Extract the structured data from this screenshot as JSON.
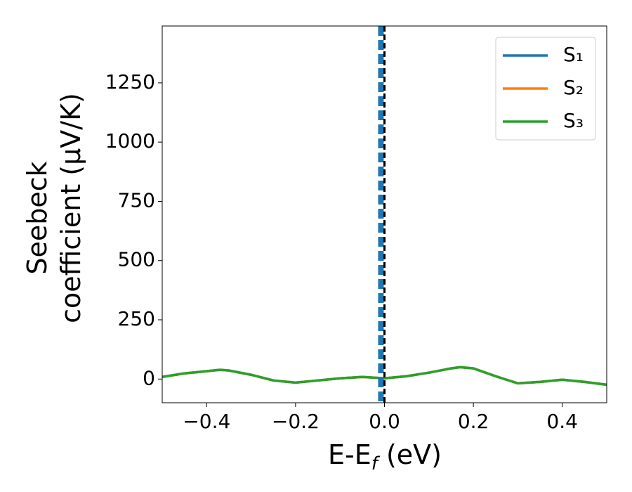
{
  "chart_data": {
    "type": "line",
    "x_label": {
      "main": "E-E",
      "sub": "f",
      "end": " (eV)"
    },
    "y_label": [
      "Seebeck",
      "coefficient  (μV/K)"
    ],
    "x": [
      -0.5,
      -0.45,
      -0.4,
      -0.37,
      -0.35,
      -0.3,
      -0.25,
      -0.2,
      -0.15,
      -0.1,
      -0.05,
      0,
      0.05,
      0.1,
      0.15,
      0.17,
      0.2,
      0.25,
      0.3,
      0.35,
      0.4,
      0.45,
      0.5
    ],
    "series": [
      {
        "name": "S₁",
        "color": "#1f77b4",
        "values": [
          9,
          24,
          33,
          39,
          36,
          18,
          -6,
          -15,
          -6,
          3,
          9,
          3,
          12,
          27,
          45,
          50,
          45,
          12,
          -18,
          -12,
          -3,
          -12,
          -24
        ]
      },
      {
        "name": "S₂",
        "color": "#ff7f0e",
        "values": [
          9,
          24,
          33,
          39,
          36,
          18,
          -6,
          -15,
          -6,
          3,
          9,
          3,
          12,
          27,
          45,
          50,
          45,
          12,
          -18,
          -12,
          -3,
          -12,
          -24
        ]
      },
      {
        "name": "S₃",
        "color": "#2ca02c",
        "values": [
          9,
          24,
          33,
          39,
          36,
          18,
          -6,
          -15,
          -6,
          3,
          9,
          3,
          12,
          27,
          45,
          50,
          45,
          12,
          -18,
          -12,
          -3,
          -12,
          -24
        ]
      }
    ],
    "vlines": [
      {
        "x": -0.008,
        "color": "#1f77b4"
      },
      {
        "x": 0,
        "color": "#000000"
      }
    ],
    "xlim": [
      -0.5,
      0.5
    ],
    "xticks": [
      {
        "value": -0.4,
        "label": "−0.4"
      },
      {
        "value": -0.2,
        "label": "−0.2"
      },
      {
        "value": 0,
        "label": "0.0"
      },
      0.2,
      0.4
    ],
    "ylim": [
      -100,
      1490
    ],
    "yticks": [
      0,
      250,
      500,
      750,
      1000,
      1250
    ],
    "legend": "upper right"
  }
}
